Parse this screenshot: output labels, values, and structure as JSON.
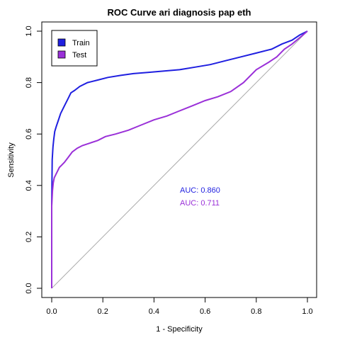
{
  "chart_data": {
    "type": "line",
    "title": "ROC Curve ari diagnosis pap eth",
    "xlabel": "1 - Specificity",
    "ylabel": "Sensitivity",
    "xlim": [
      0,
      1
    ],
    "ylim": [
      0,
      1
    ],
    "xticks": [
      "0.0",
      "0.2",
      "0.4",
      "0.6",
      "0.8",
      "1.0"
    ],
    "yticks": [
      "0.0",
      "0.2",
      "0.4",
      "0.6",
      "0.8",
      "1.0"
    ],
    "grid": false,
    "legend_position": "top-left",
    "diagonal_reference": true,
    "diagonal_color": "#aaaaaa",
    "series": [
      {
        "name": "Train",
        "color": "#1f1fe0",
        "auc_label": "AUC: 0.860",
        "x": [
          0,
          0,
          0.002,
          0.005,
          0.008,
          0.012,
          0.018,
          0.025,
          0.035,
          0.045,
          0.055,
          0.065,
          0.075,
          0.09,
          0.11,
          0.14,
          0.18,
          0.22,
          0.27,
          0.32,
          0.38,
          0.44,
          0.5,
          0.56,
          0.62,
          0.68,
          0.74,
          0.8,
          0.86,
          0.9,
          0.94,
          0.97,
          1.0
        ],
        "y": [
          0,
          0.32,
          0.5,
          0.55,
          0.58,
          0.61,
          0.63,
          0.65,
          0.68,
          0.7,
          0.72,
          0.74,
          0.76,
          0.77,
          0.785,
          0.8,
          0.81,
          0.82,
          0.828,
          0.835,
          0.84,
          0.845,
          0.85,
          0.86,
          0.87,
          0.885,
          0.9,
          0.915,
          0.93,
          0.95,
          0.965,
          0.985,
          1.0
        ]
      },
      {
        "name": "Test",
        "color": "#9a30d8",
        "auc_label": "AUC: 0.711",
        "x": [
          0,
          0,
          0.003,
          0.006,
          0.01,
          0.015,
          0.02,
          0.03,
          0.04,
          0.05,
          0.065,
          0.08,
          0.1,
          0.12,
          0.15,
          0.18,
          0.21,
          0.25,
          0.3,
          0.35,
          0.4,
          0.45,
          0.5,
          0.55,
          0.6,
          0.65,
          0.7,
          0.75,
          0.8,
          0.85,
          0.88,
          0.91,
          0.94,
          0.97,
          1.0
        ],
        "y": [
          0,
          0.32,
          0.38,
          0.41,
          0.43,
          0.44,
          0.45,
          0.47,
          0.48,
          0.49,
          0.51,
          0.53,
          0.545,
          0.555,
          0.565,
          0.575,
          0.59,
          0.6,
          0.615,
          0.635,
          0.655,
          0.67,
          0.69,
          0.71,
          0.73,
          0.745,
          0.765,
          0.8,
          0.85,
          0.88,
          0.9,
          0.93,
          0.95,
          0.975,
          1.0
        ]
      }
    ]
  }
}
